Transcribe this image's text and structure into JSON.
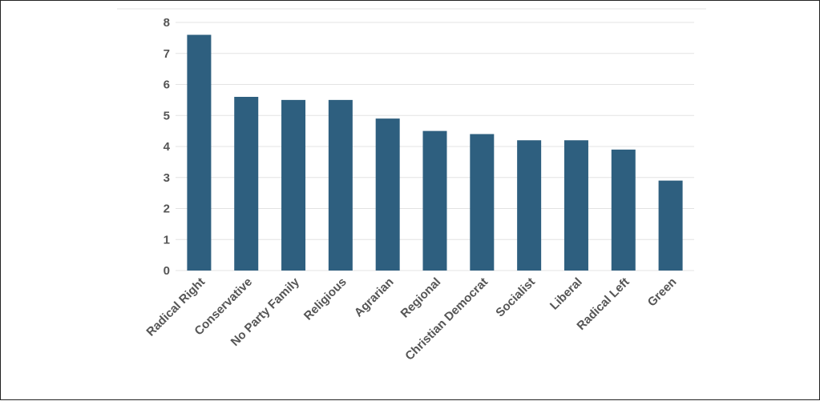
{
  "chart_data": {
    "type": "bar",
    "title": "",
    "xlabel": "",
    "ylabel": "",
    "categories": [
      "Radical Right",
      "Conservative",
      "No Party Family",
      "Religious",
      "Agrarian",
      "Regional",
      "Christian Democrat",
      "Socialist",
      "Liberal",
      "Radical Left",
      "Green"
    ],
    "values": [
      7.6,
      5.6,
      5.5,
      5.5,
      4.9,
      4.5,
      4.4,
      4.2,
      4.2,
      3.9,
      2.9
    ],
    "ylim": [
      0,
      8
    ],
    "yticks": [
      0,
      1,
      2,
      3,
      4,
      5,
      6,
      7,
      8
    ],
    "grid": true,
    "legend": "none",
    "bar_color": "#2e5f7f"
  }
}
